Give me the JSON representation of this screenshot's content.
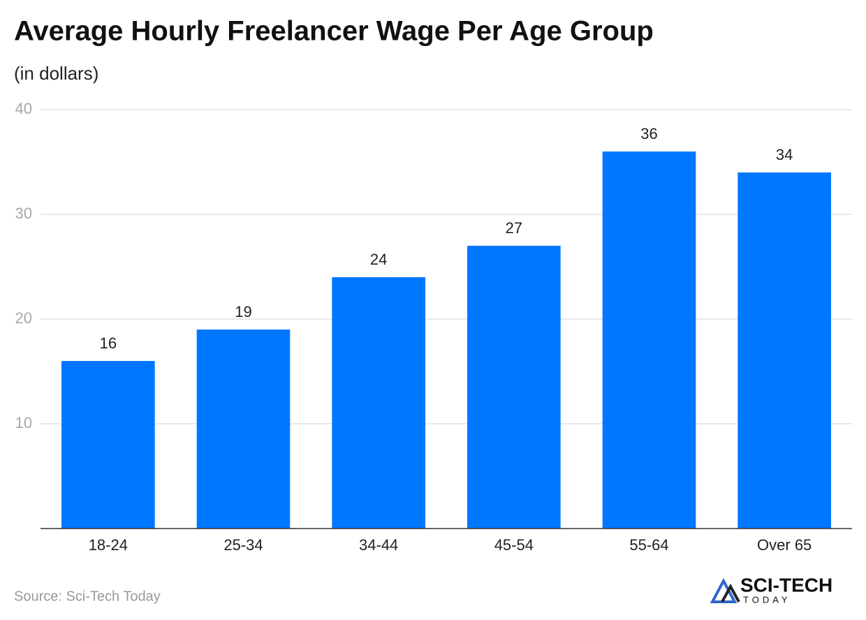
{
  "chart_data": {
    "type": "bar",
    "title": "Average Hourly Freelancer Wage Per Age Group",
    "subtitle": "(in dollars)",
    "categories": [
      "18-24",
      "25-34",
      "34-44",
      "45-54",
      "55-64",
      "Over 65"
    ],
    "values": [
      16,
      19,
      24,
      27,
      36,
      34
    ],
    "color": "#0077ff",
    "ylim": [
      0,
      40
    ],
    "yticks": [
      10,
      20,
      30,
      40
    ],
    "grid": true,
    "source": "Source: Sci-Tech Today",
    "logo": {
      "name": "SCI-TECH",
      "tagline": "TODAY"
    }
  }
}
